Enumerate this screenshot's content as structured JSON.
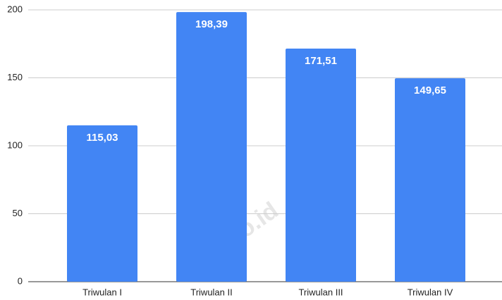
{
  "chart_data": {
    "type": "bar",
    "categories": [
      "Triwulan I",
      "Triwulan II",
      "Triwulan III",
      "Triwulan IV"
    ],
    "values": [
      115.03,
      198.39,
      171.51,
      149.65
    ],
    "value_labels": [
      "115,03",
      "198,39",
      "171,51",
      "149,65"
    ],
    "color": "#4285f4",
    "ylim": [
      0,
      200
    ],
    "yticks": [
      0,
      50,
      100,
      150,
      200
    ],
    "grid": true,
    "watermark": "bps.go.id"
  }
}
